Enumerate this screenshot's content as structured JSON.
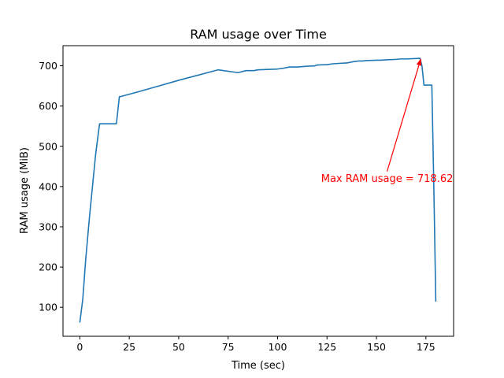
{
  "chart_data": {
    "type": "line",
    "title": "RAM usage over Time",
    "xlabel": "Time (sec)",
    "ylabel": "RAM usage (MiB)",
    "xlim": [
      -8.5,
      189
    ],
    "ylim": [
      28,
      750
    ],
    "xticks": [
      0,
      25,
      50,
      75,
      100,
      125,
      150,
      175
    ],
    "yticks": [
      100,
      200,
      300,
      400,
      500,
      600,
      700
    ],
    "grid": false,
    "series": [
      {
        "color": "#1f77b4",
        "x": [
          0,
          1.5,
          3,
          5,
          8,
          10,
          12,
          18.5,
          20,
          21,
          30,
          40,
          50,
          60,
          70,
          80,
          84,
          88,
          90,
          95,
          100,
          103,
          106,
          110,
          115,
          119,
          120,
          125,
          128,
          131,
          135,
          138,
          141,
          143,
          145,
          150,
          152,
          155,
          160,
          162,
          165,
          170,
          172,
          173,
          174,
          176,
          178,
          179,
          180
        ],
        "y": [
          62,
          120,
          220,
          330,
          480,
          556,
          556,
          556,
          623,
          624,
          636,
          650,
          664,
          677,
          690,
          683,
          688,
          688,
          690,
          691,
          692,
          694,
          697,
          697,
          699,
          700,
          702,
          703,
          705,
          706,
          707,
          710,
          712,
          712,
          713,
          714,
          714,
          715,
          716,
          717,
          717,
          718,
          718.62,
          700,
          652,
          652,
          652,
          400,
          114
        ]
      }
    ],
    "annotation": {
      "text": "Max RAM usage = 718.62",
      "color": "#ff0000",
      "xy": [
        172.5,
        718.62
      ],
      "xytext": [
        122,
        420
      ]
    }
  }
}
